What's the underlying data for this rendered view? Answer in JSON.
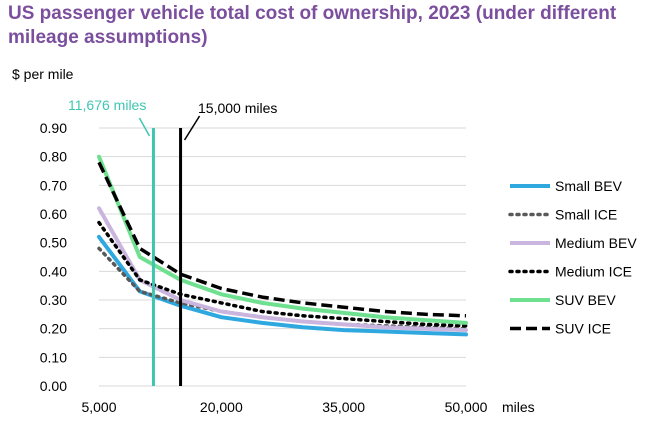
{
  "colors": {
    "title": "#7b4f9e",
    "small_bev": "#2fa8e0",
    "small_ice": "#595959",
    "medium_bev": "#c9b5de",
    "medium_ice": "#000000",
    "suv_bev": "#6fe08f",
    "suv_ice": "#000000",
    "marker_1": "#3ec6b0",
    "marker_2": "#000000",
    "grid": "#d9d9d9"
  },
  "chart_data": {
    "type": "line",
    "title": "US passenger vehicle total cost of ownership, 2023 (under different mileage assumptions)",
    "ylabel": "$ per mile",
    "xlabel": "miles",
    "xlim": [
      5000,
      50000
    ],
    "ylim": [
      0,
      0.9
    ],
    "x_ticks": [
      5000,
      20000,
      35000,
      50000
    ],
    "x_tick_labels": [
      "5,000",
      "20,000",
      "35,000",
      "50,000"
    ],
    "y_ticks": [
      0,
      0.1,
      0.2,
      0.3,
      0.4,
      0.5,
      0.6,
      0.7,
      0.8,
      0.9
    ],
    "y_tick_labels": [
      "0.00",
      "0.10",
      "0.20",
      "0.30",
      "0.40",
      "0.50",
      "0.60",
      "0.70",
      "0.80",
      "0.90"
    ],
    "grid": "horizontal",
    "legend_position": "right",
    "x": [
      5000,
      10000,
      15000,
      20000,
      25000,
      30000,
      35000,
      40000,
      45000,
      50000
    ],
    "series": [
      {
        "name": "Small BEV",
        "style": "solid",
        "color_key": "small_bev",
        "values": [
          0.52,
          0.33,
          0.28,
          0.24,
          0.22,
          0.205,
          0.195,
          0.19,
          0.185,
          0.18
        ]
      },
      {
        "name": "Small ICE",
        "style": "dotted",
        "color_key": "small_ice",
        "values": [
          0.48,
          0.33,
          0.29,
          0.26,
          0.24,
          0.225,
          0.215,
          0.21,
          0.205,
          0.2
        ]
      },
      {
        "name": "Medium BEV",
        "style": "solid",
        "color_key": "medium_bev",
        "values": [
          0.62,
          0.37,
          0.3,
          0.26,
          0.24,
          0.225,
          0.215,
          0.205,
          0.2,
          0.195
        ]
      },
      {
        "name": "Medium ICE",
        "style": "dotted",
        "color_key": "medium_ice",
        "values": [
          0.57,
          0.37,
          0.32,
          0.29,
          0.26,
          0.245,
          0.235,
          0.225,
          0.215,
          0.21
        ]
      },
      {
        "name": "SUV BEV",
        "style": "solid",
        "color_key": "suv_bev",
        "values": [
          0.8,
          0.45,
          0.37,
          0.32,
          0.29,
          0.27,
          0.255,
          0.24,
          0.23,
          0.22
        ]
      },
      {
        "name": "SUV ICE",
        "style": "dashed",
        "color_key": "suv_ice",
        "values": [
          0.78,
          0.48,
          0.39,
          0.34,
          0.31,
          0.29,
          0.275,
          0.26,
          0.25,
          0.245
        ]
      }
    ],
    "annotations": [
      {
        "label": "11,676 miles",
        "x": 11676,
        "color_key": "marker_1"
      },
      {
        "label": "15,000 miles",
        "x": 15000,
        "color_key": "marker_2"
      }
    ]
  }
}
